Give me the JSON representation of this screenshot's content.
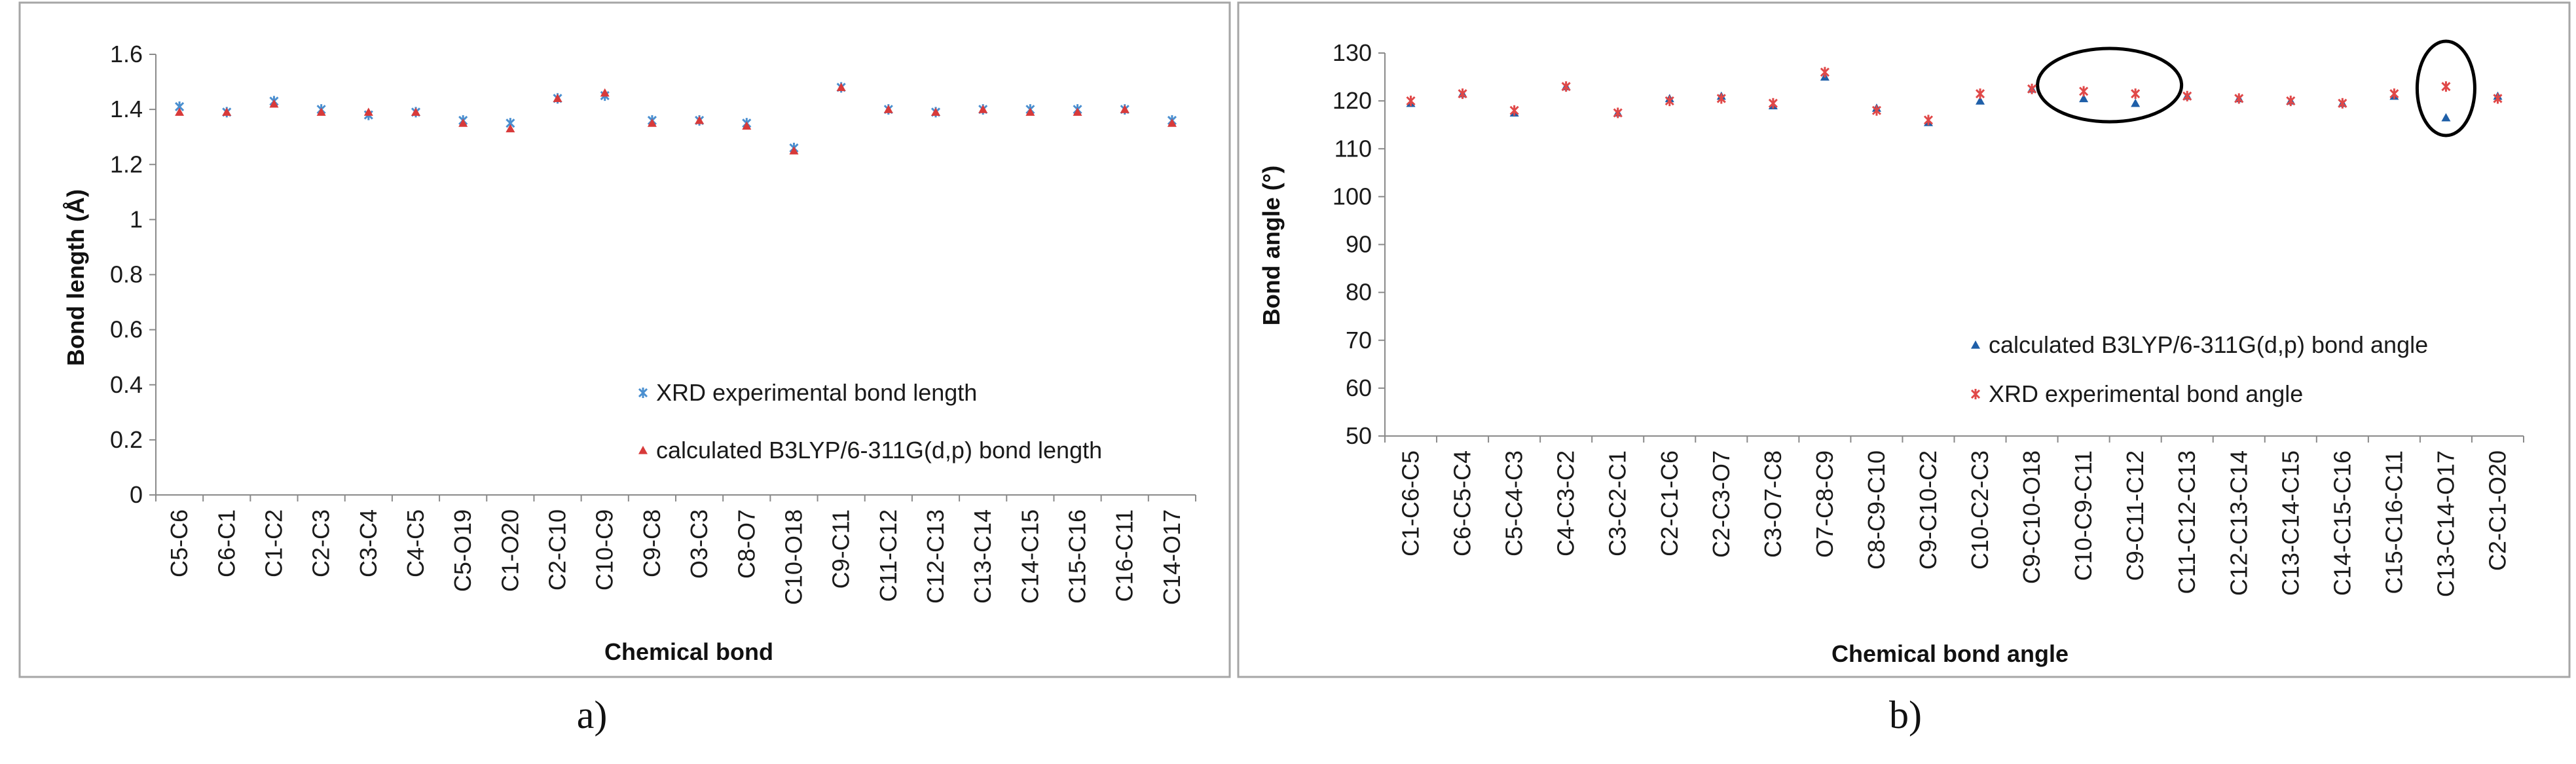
{
  "panels": [
    {
      "label": "a)",
      "chart_data": {
        "type": "scatter",
        "title": "",
        "xlabel": "Chemical bond",
        "ylabel": "Bond length (Å)",
        "ylim": [
          0,
          1.6
        ],
        "yticks": [
          "0",
          "0.2",
          "0.4",
          "0.6",
          "0.8",
          "1",
          "1.2",
          "1.4",
          "1.6"
        ],
        "grid": false,
        "legend_position": "lower-right",
        "categories": [
          "C5-C6",
          "C6-C1",
          "C1-C2",
          "C2-C3",
          "C3-C4",
          "C4-C5",
          "C5-O19",
          "C1-O20",
          "C2-C10",
          "C10-C9",
          "C9-C8",
          "O3-C3",
          "C8-O7",
          "C10-O18",
          "C9-C11",
          "C11-C12",
          "C12-C13",
          "C13-C14",
          "C14-C15",
          "C15-C16",
          "C16-C11",
          "C14-O17"
        ],
        "series": [
          {
            "name": "XRD experimental bond length",
            "marker": "x",
            "color": "#4a8fd0",
            "values": [
              1.41,
              1.39,
              1.43,
              1.4,
              1.38,
              1.39,
              1.36,
              1.35,
              1.44,
              1.45,
              1.36,
              1.36,
              1.35,
              1.26,
              1.48,
              1.4,
              1.39,
              1.4,
              1.4,
              1.4,
              1.4,
              1.36
            ]
          },
          {
            "name": "calculated B3LYP/6-311G(d,p) bond length",
            "marker": "triangle",
            "color": "#d83a3a",
            "values": [
              1.39,
              1.39,
              1.42,
              1.39,
              1.39,
              1.39,
              1.35,
              1.33,
              1.44,
              1.46,
              1.35,
              1.36,
              1.34,
              1.25,
              1.48,
              1.4,
              1.39,
              1.4,
              1.39,
              1.39,
              1.4,
              1.35
            ]
          }
        ]
      }
    },
    {
      "label": "b)",
      "chart_data": {
        "type": "scatter",
        "title": "",
        "xlabel": "Chemical bond angle",
        "ylabel": "Bond angle (°)",
        "ylim": [
          50,
          130
        ],
        "yticks": [
          "50",
          "60",
          "70",
          "80",
          "90",
          "100",
          "110",
          "120",
          "130"
        ],
        "grid": false,
        "legend_position": "lower-right",
        "categories": [
          "C1-C6-C5",
          "C6-C5-C4",
          "C5-C4-C3",
          "C4-C3-C2",
          "C3-C2-C1",
          "C2-C1-C6",
          "C2-C3-O7",
          "C3-O7-C8",
          "O7-C8-C9",
          "C8-C9-C10",
          "C9-C10-C2",
          "C10-C2-C3",
          "C9-C10-O18",
          "C10-C9-C11",
          "C9-C11-C12",
          "C11-C12-C13",
          "C12-C13-C14",
          "C13-C14-C15",
          "C14-C15-C16",
          "C15-C16-C11",
          "C13-C14-O17",
          "C2-C1-O20"
        ],
        "series": [
          {
            "name": "calculated B3LYP/6-311G(d,p) bond angle",
            "marker": "triangle",
            "color": "#1f5fa8",
            "values": [
              119.5,
              121.5,
              117.5,
              123.0,
              117.5,
              120.5,
              121.0,
              119.0,
              125.0,
              118.5,
              115.5,
              120.0,
              122.5,
              120.5,
              119.5,
              121.0,
              120.5,
              120.0,
              119.5,
              121.0,
              116.5,
              121.0
            ]
          },
          {
            "name": "XRD experimental bond angle",
            "marker": "x",
            "color": "#e04848",
            "values": [
              120.0,
              121.5,
              118.0,
              123.0,
              117.5,
              120.0,
              120.5,
              119.5,
              126.0,
              118.0,
              116.0,
              121.5,
              122.5,
              122.0,
              121.5,
              121.0,
              120.5,
              120.0,
              119.5,
              121.5,
              123.0,
              120.5
            ]
          }
        ],
        "highlighted_categories": [
          "C10-C9-C11",
          "C9-C11-C12",
          "C13-C14-O17"
        ]
      }
    }
  ]
}
